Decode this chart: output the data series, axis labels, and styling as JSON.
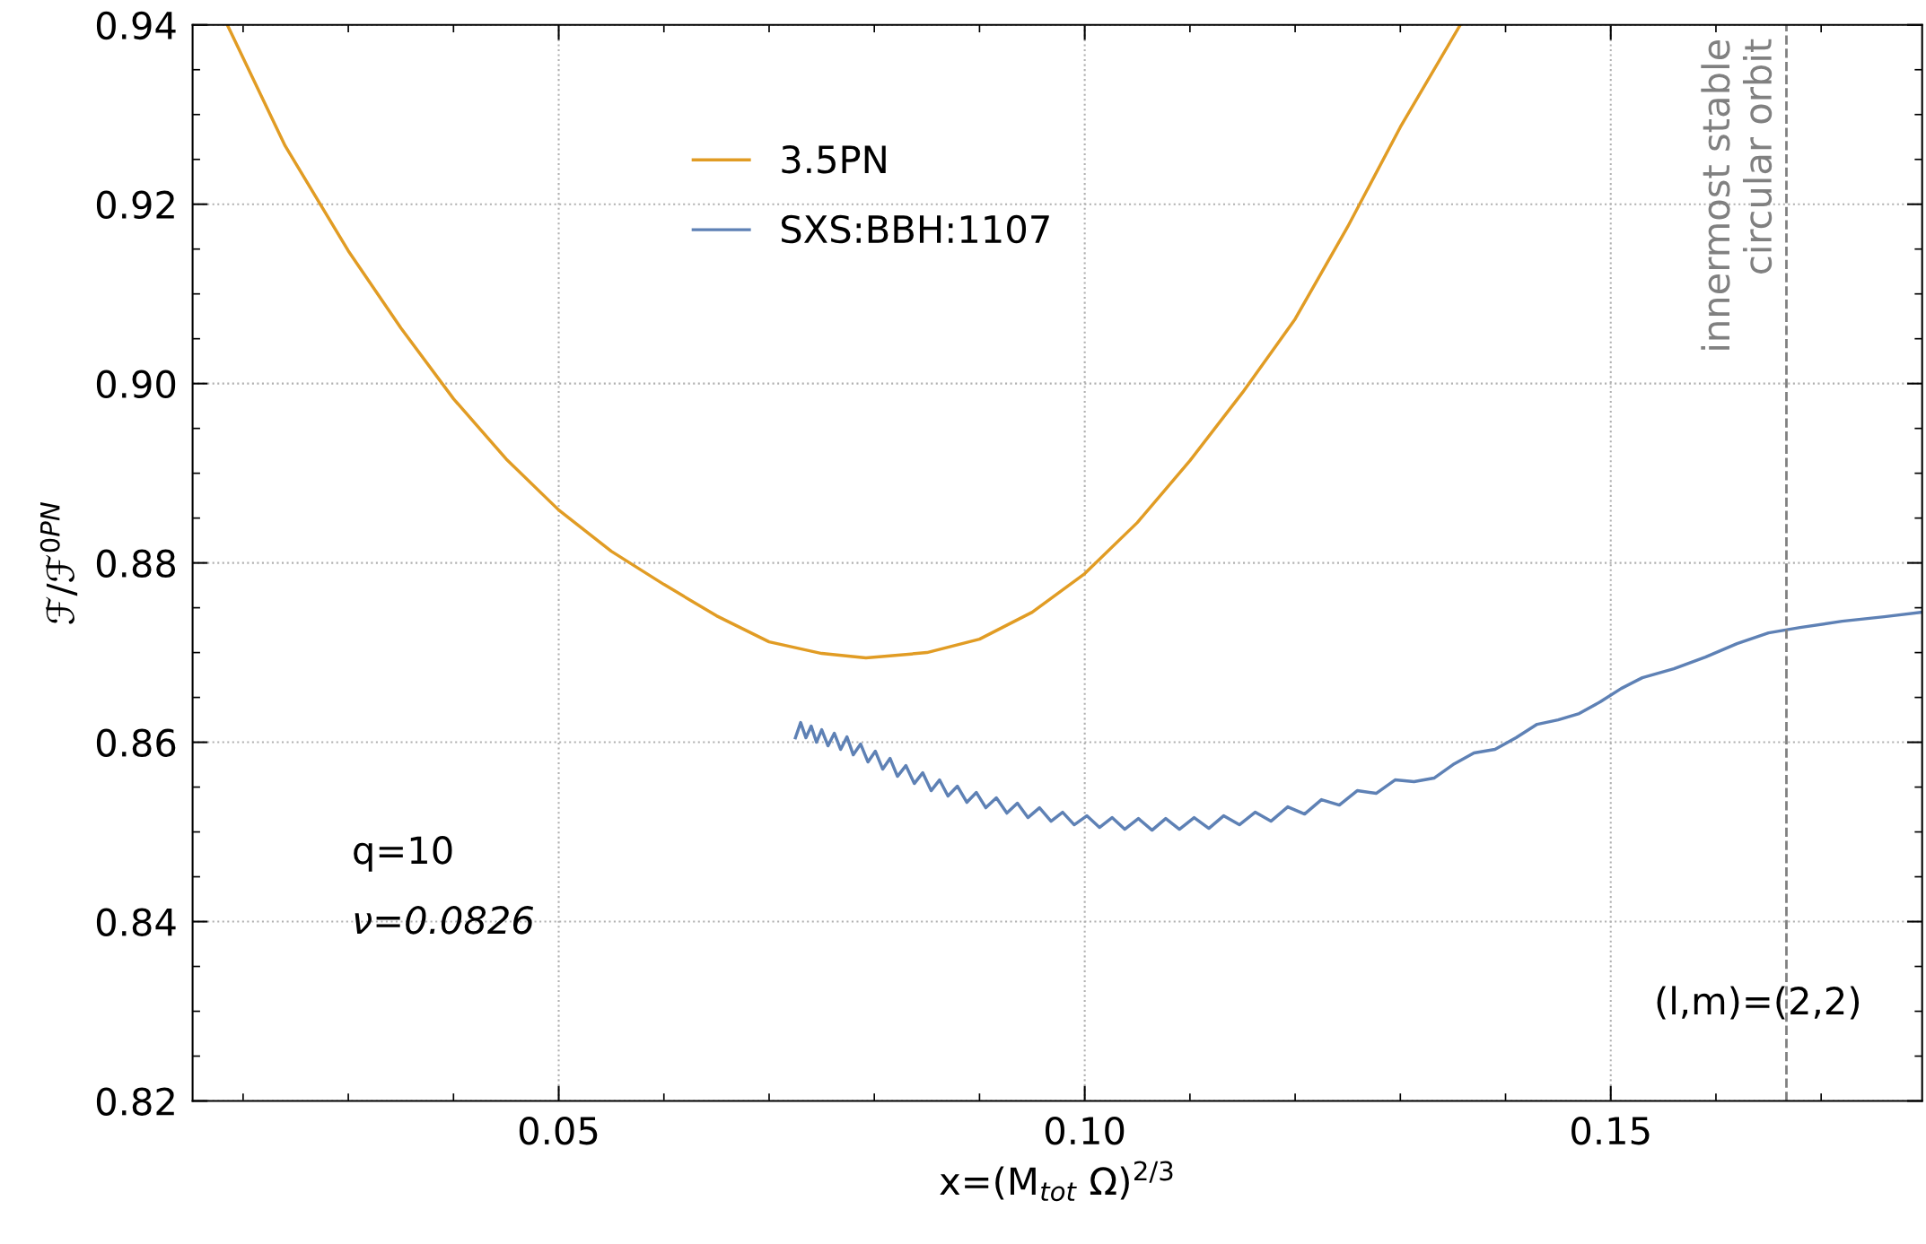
{
  "chart_data": {
    "type": "line",
    "xlabel": "x=(M$_{tot}$ Ω)$^{2/3}$",
    "ylabel": "ℱ/ℱ$^{0PN}$",
    "xlim": [
      0.0152,
      0.1796
    ],
    "ylim": [
      0.82,
      0.94
    ],
    "xticks": [
      {
        "value": 0.05,
        "label": "0.05"
      },
      {
        "value": 0.1,
        "label": "0.10"
      },
      {
        "value": 0.15,
        "label": "0.15"
      }
    ],
    "yticks": [
      {
        "value": 0.82,
        "label": "0.82"
      },
      {
        "value": 0.84,
        "label": "0.84"
      },
      {
        "value": 0.86,
        "label": "0.86"
      },
      {
        "value": 0.88,
        "label": "0.88"
      },
      {
        "value": 0.9,
        "label": "0.90"
      },
      {
        "value": 0.92,
        "label": "0.92"
      },
      {
        "value": 0.94,
        "label": "0.94"
      }
    ],
    "grid": true,
    "legend": "top left",
    "line_style": "solid",
    "marker": "none",
    "series": [
      {
        "name": "3.5PN",
        "color": "#e19c24",
        "x": [
          0.0185,
          0.024,
          0.03,
          0.035,
          0.04,
          0.045,
          0.05,
          0.055,
          0.06,
          0.065,
          0.07,
          0.075,
          0.0792,
          0.085,
          0.09,
          0.095,
          0.1,
          0.105,
          0.11,
          0.115,
          0.12,
          0.125,
          0.13,
          0.1357
        ],
        "values": [
          0.94,
          0.9265,
          0.9148,
          0.9062,
          0.8983,
          0.8916,
          0.8859,
          0.8813,
          0.8776,
          0.8741,
          0.8712,
          0.8699,
          0.8694,
          0.87,
          0.8715,
          0.8745,
          0.8788,
          0.8845,
          0.8914,
          0.899,
          0.9072,
          0.9175,
          0.9286,
          0.94
        ]
      },
      {
        "name": "SXS:BBH:1107",
        "color": "#5e81b5",
        "x": [
          0.0725,
          0.073,
          0.0735,
          0.074,
          0.0745,
          0.075,
          0.0756,
          0.0762,
          0.0768,
          0.0774,
          0.078,
          0.0787,
          0.0794,
          0.0801,
          0.0808,
          0.0815,
          0.0822,
          0.083,
          0.0838,
          0.0846,
          0.0854,
          0.0862,
          0.087,
          0.0879,
          0.0888,
          0.0897,
          0.0906,
          0.0916,
          0.0926,
          0.0936,
          0.0946,
          0.0957,
          0.0968,
          0.0979,
          0.099,
          0.1002,
          0.1014,
          0.1026,
          0.1038,
          0.1051,
          0.1064,
          0.1077,
          0.109,
          0.1104,
          0.1118,
          0.1132,
          0.1147,
          0.1162,
          0.1177,
          0.1193,
          0.1209,
          0.1225,
          0.1242,
          0.1259,
          0.1277,
          0.1295,
          0.1313,
          0.1332,
          0.135,
          0.137,
          0.139,
          0.141,
          0.143,
          0.145,
          0.147,
          0.149,
          0.151,
          0.153,
          0.156,
          0.159,
          0.162,
          0.165,
          0.168,
          0.172,
          0.176,
          0.1796
        ],
        "values": [
          0.8605,
          0.8622,
          0.8605,
          0.8618,
          0.86,
          0.8614,
          0.8596,
          0.861,
          0.8592,
          0.8606,
          0.8586,
          0.8598,
          0.8578,
          0.859,
          0.857,
          0.8582,
          0.8562,
          0.8574,
          0.8554,
          0.8566,
          0.8546,
          0.8558,
          0.854,
          0.8551,
          0.8533,
          0.8544,
          0.8527,
          0.8538,
          0.8521,
          0.8532,
          0.8516,
          0.8527,
          0.8512,
          0.8522,
          0.8508,
          0.8518,
          0.8505,
          0.8516,
          0.8503,
          0.8515,
          0.8502,
          0.8515,
          0.8503,
          0.8516,
          0.8504,
          0.8518,
          0.8508,
          0.8522,
          0.8512,
          0.8528,
          0.852,
          0.8536,
          0.853,
          0.8546,
          0.8543,
          0.8558,
          0.8556,
          0.856,
          0.8575,
          0.8588,
          0.8592,
          0.8605,
          0.862,
          0.8625,
          0.8632,
          0.8645,
          0.866,
          0.8672,
          0.8682,
          0.8695,
          0.871,
          0.8722,
          0.8728,
          0.8735,
          0.874,
          0.8745
        ]
      }
    ],
    "ref_lines": [
      {
        "axis": "x",
        "value": 0.1667,
        "label": "innermost stable\ncircular orbit",
        "color": "#808080",
        "line_style": "dashed"
      }
    ],
    "annotations": [
      "q=10",
      "ν=0.0826",
      "(l,m)=(2,2)"
    ]
  }
}
